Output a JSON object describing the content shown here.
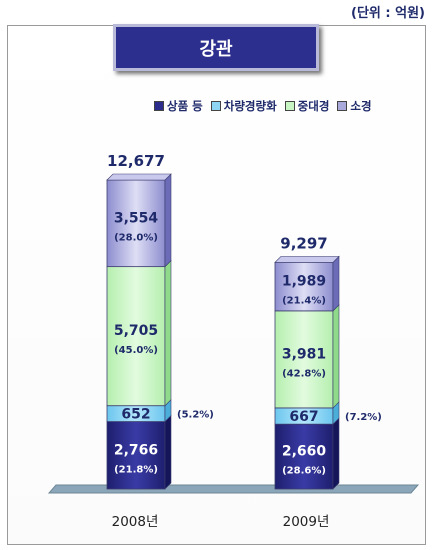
{
  "unit_note": "(단위 : 억원)",
  "title": "강관",
  "legend": [
    {
      "label": "상품 등",
      "color": "#2b2c8c"
    },
    {
      "label": "차량경량화",
      "color": "#8fd6f4"
    },
    {
      "label": "중대경",
      "color": "#c9f5c4"
    },
    {
      "label": "소경",
      "color": "#a9a9dc"
    }
  ],
  "chart_data": {
    "type": "bar",
    "stacked": true,
    "categories": [
      "2008년",
      "2009년"
    ],
    "totals": [
      "12,677",
      "9,297"
    ],
    "series": [
      {
        "name": "상품 등",
        "values": [
          2766,
          2660
        ],
        "labels": [
          "2,766",
          "2,660"
        ],
        "pct": [
          "(21.8%)",
          "(28.6%)"
        ]
      },
      {
        "name": "차량경량화",
        "values": [
          652,
          667
        ],
        "labels": [
          "652",
          "667"
        ],
        "pct": [
          "(5.2%)",
          "(7.2%)"
        ]
      },
      {
        "name": "중대경",
        "values": [
          5705,
          3981
        ],
        "labels": [
          "5,705",
          "3,981"
        ],
        "pct": [
          "(45.0%)",
          "(42.8%)"
        ]
      },
      {
        "name": "소경",
        "values": [
          3554,
          1989
        ],
        "labels": [
          "3,554",
          "1,989"
        ],
        "pct": [
          "(28.0%)",
          "(21.4%)"
        ]
      }
    ]
  }
}
